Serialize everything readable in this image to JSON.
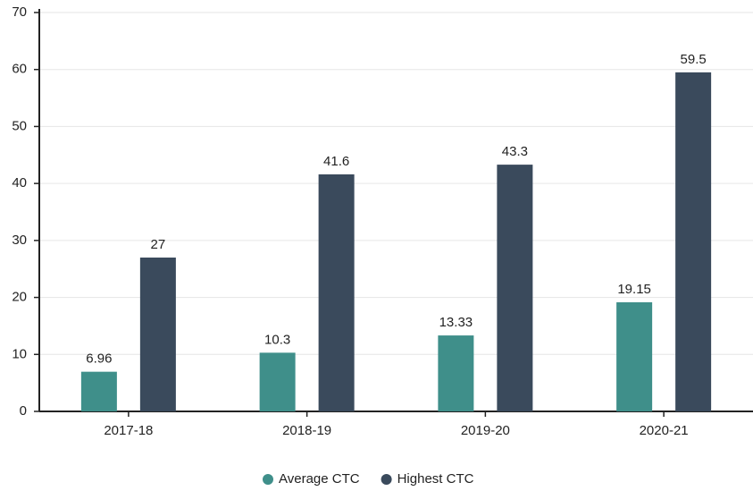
{
  "chart_data": {
    "type": "bar",
    "categories": [
      "2017-18",
      "2018-19",
      "2019-20",
      "2020-21"
    ],
    "series": [
      {
        "name": "Average CTC",
        "color": "#3f8f8a",
        "values": [
          6.96,
          10.3,
          13.33,
          19.15
        ]
      },
      {
        "name": "Highest CTC",
        "color": "#3a4a5c",
        "values": [
          27,
          41.6,
          43.3,
          59.5
        ]
      }
    ],
    "ylim": [
      0,
      70
    ],
    "yticks": [
      0,
      10,
      20,
      30,
      40,
      50,
      60,
      70
    ],
    "grid": true,
    "legend": "bottom"
  }
}
